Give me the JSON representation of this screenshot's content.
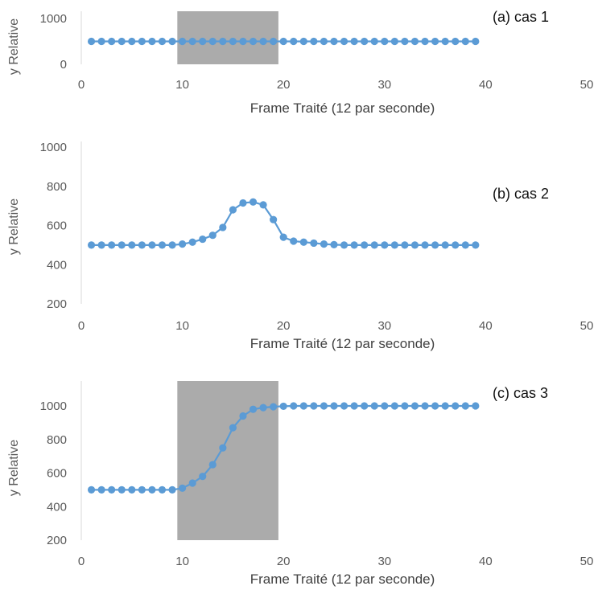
{
  "chart_data": [
    {
      "type": "line",
      "panel_label": "(a) cas 1",
      "xlabel": "Frame Traité (12 par seconde)",
      "ylabel": "y Relative",
      "xlim": [
        0,
        50
      ],
      "ylim": [
        0,
        1000
      ],
      "xticks": [
        0,
        10,
        20,
        30,
        40,
        50
      ],
      "yticks": [
        0,
        1000
      ],
      "grid": false,
      "shaded_region": {
        "x": [
          9.5,
          19.5
        ],
        "color": "#a6a6a6"
      },
      "series": [
        {
          "color": "#5b9bd5",
          "x": [
            1,
            2,
            3,
            4,
            5,
            6,
            7,
            8,
            9,
            10,
            11,
            12,
            13,
            14,
            15,
            16,
            17,
            18,
            19,
            20,
            21,
            22,
            23,
            24,
            25,
            26,
            27,
            28,
            29,
            30,
            31,
            32,
            33,
            34,
            35,
            36,
            37,
            38,
            39
          ],
          "y": [
            500,
            500,
            500,
            500,
            500,
            500,
            500,
            500,
            500,
            500,
            500,
            500,
            500,
            500,
            500,
            500,
            500,
            500,
            500,
            500,
            500,
            500,
            500,
            500,
            500,
            500,
            500,
            500,
            500,
            500,
            500,
            500,
            500,
            500,
            500,
            500,
            500,
            500,
            500
          ]
        }
      ]
    },
    {
      "type": "line",
      "panel_label": "(b) cas 2",
      "xlabel": "Frame Traité (12 par seconde)",
      "ylabel": "y Relative",
      "xlim": [
        0,
        50
      ],
      "ylim": [
        200,
        1000
      ],
      "xticks": [
        0,
        10,
        20,
        30,
        40,
        50
      ],
      "yticks": [
        200,
        400,
        600,
        800,
        1000
      ],
      "grid": false,
      "series": [
        {
          "color": "#5b9bd5",
          "x": [
            1,
            2,
            3,
            4,
            5,
            6,
            7,
            8,
            9,
            10,
            11,
            12,
            13,
            14,
            15,
            16,
            17,
            18,
            19,
            20,
            21,
            22,
            23,
            24,
            25,
            26,
            27,
            28,
            29,
            30,
            31,
            32,
            33,
            34,
            35,
            36,
            37,
            38,
            39
          ],
          "y": [
            500,
            500,
            500,
            500,
            500,
            500,
            500,
            500,
            500,
            505,
            515,
            530,
            550,
            590,
            680,
            715,
            720,
            705,
            630,
            540,
            520,
            515,
            510,
            505,
            502,
            500,
            500,
            500,
            500,
            500,
            500,
            500,
            500,
            500,
            500,
            500,
            500,
            500,
            500
          ]
        }
      ]
    },
    {
      "type": "line",
      "panel_label": "(c) cas 3",
      "xlabel": "Frame Traité (12 par seconde)",
      "ylabel": "y Relative",
      "xlim": [
        0,
        50
      ],
      "ylim": [
        200,
        1100
      ],
      "xticks": [
        0,
        10,
        20,
        30,
        40,
        50
      ],
      "yticks": [
        200,
        400,
        600,
        800,
        1000
      ],
      "grid": false,
      "shaded_region": {
        "x": [
          9.5,
          19.5
        ],
        "color": "#a6a6a6"
      },
      "series": [
        {
          "color": "#5b9bd5",
          "x": [
            1,
            2,
            3,
            4,
            5,
            6,
            7,
            8,
            9,
            10,
            11,
            12,
            13,
            14,
            15,
            16,
            17,
            18,
            19,
            20,
            21,
            22,
            23,
            24,
            25,
            26,
            27,
            28,
            29,
            30,
            31,
            32,
            33,
            34,
            35,
            36,
            37,
            38,
            39
          ],
          "y": [
            500,
            500,
            500,
            500,
            500,
            500,
            500,
            500,
            500,
            510,
            540,
            580,
            650,
            750,
            870,
            940,
            980,
            990,
            995,
            998,
            1000,
            1000,
            1000,
            1000,
            1000,
            1000,
            1000,
            1000,
            1000,
            1000,
            1000,
            1000,
            1000,
            1000,
            1000,
            1000,
            1000,
            1000,
            1000
          ]
        }
      ]
    }
  ]
}
